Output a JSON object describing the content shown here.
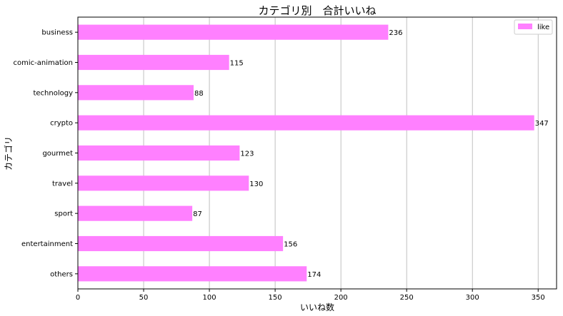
{
  "chart_data": {
    "type": "bar",
    "orientation": "horizontal",
    "title": "カテゴリ別　合計いいね",
    "xlabel": "いいね数",
    "ylabel": "カテゴリ",
    "categories": [
      "business",
      "comic-animation",
      "technology",
      "crypto",
      "gourmet",
      "travel",
      "sport",
      "entertainment",
      "others"
    ],
    "series": [
      {
        "name": "like",
        "values": [
          236,
          115,
          88,
          347,
          123,
          130,
          87,
          156,
          174
        ],
        "color": "#ff80ff"
      }
    ],
    "xlim": [
      0,
      364
    ],
    "xticks": [
      0,
      50,
      100,
      150,
      200,
      250,
      300,
      350
    ],
    "grid": "vertical",
    "legend": "top-right"
  }
}
